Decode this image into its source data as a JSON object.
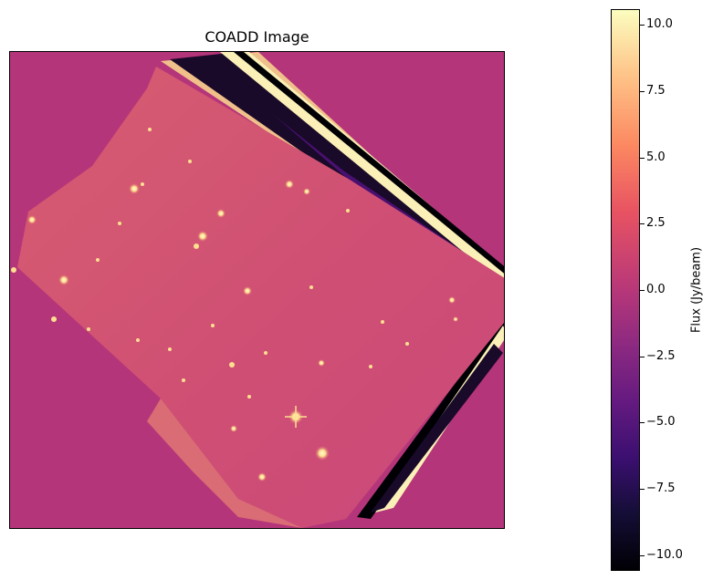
{
  "figure": {
    "title": "COADD Image",
    "background_color": "#b5357a"
  },
  "colorbar": {
    "label": "Flux (Jy/beam)",
    "colormap": "magma",
    "range": [
      -10.6,
      10.6
    ],
    "ticks": [
      {
        "value": 10.0,
        "label": "10.0"
      },
      {
        "value": 7.5,
        "label": "7.5"
      },
      {
        "value": 5.0,
        "label": "5.0"
      },
      {
        "value": 2.5,
        "label": "2.5"
      },
      {
        "value": 0.0,
        "label": "0.0"
      },
      {
        "value": -2.5,
        "label": "−2.5"
      },
      {
        "value": -5.0,
        "label": "−5.0"
      },
      {
        "value": -7.5,
        "label": "−7.5"
      },
      {
        "value": -10.0,
        "label": "−10.0"
      }
    ]
  }
}
